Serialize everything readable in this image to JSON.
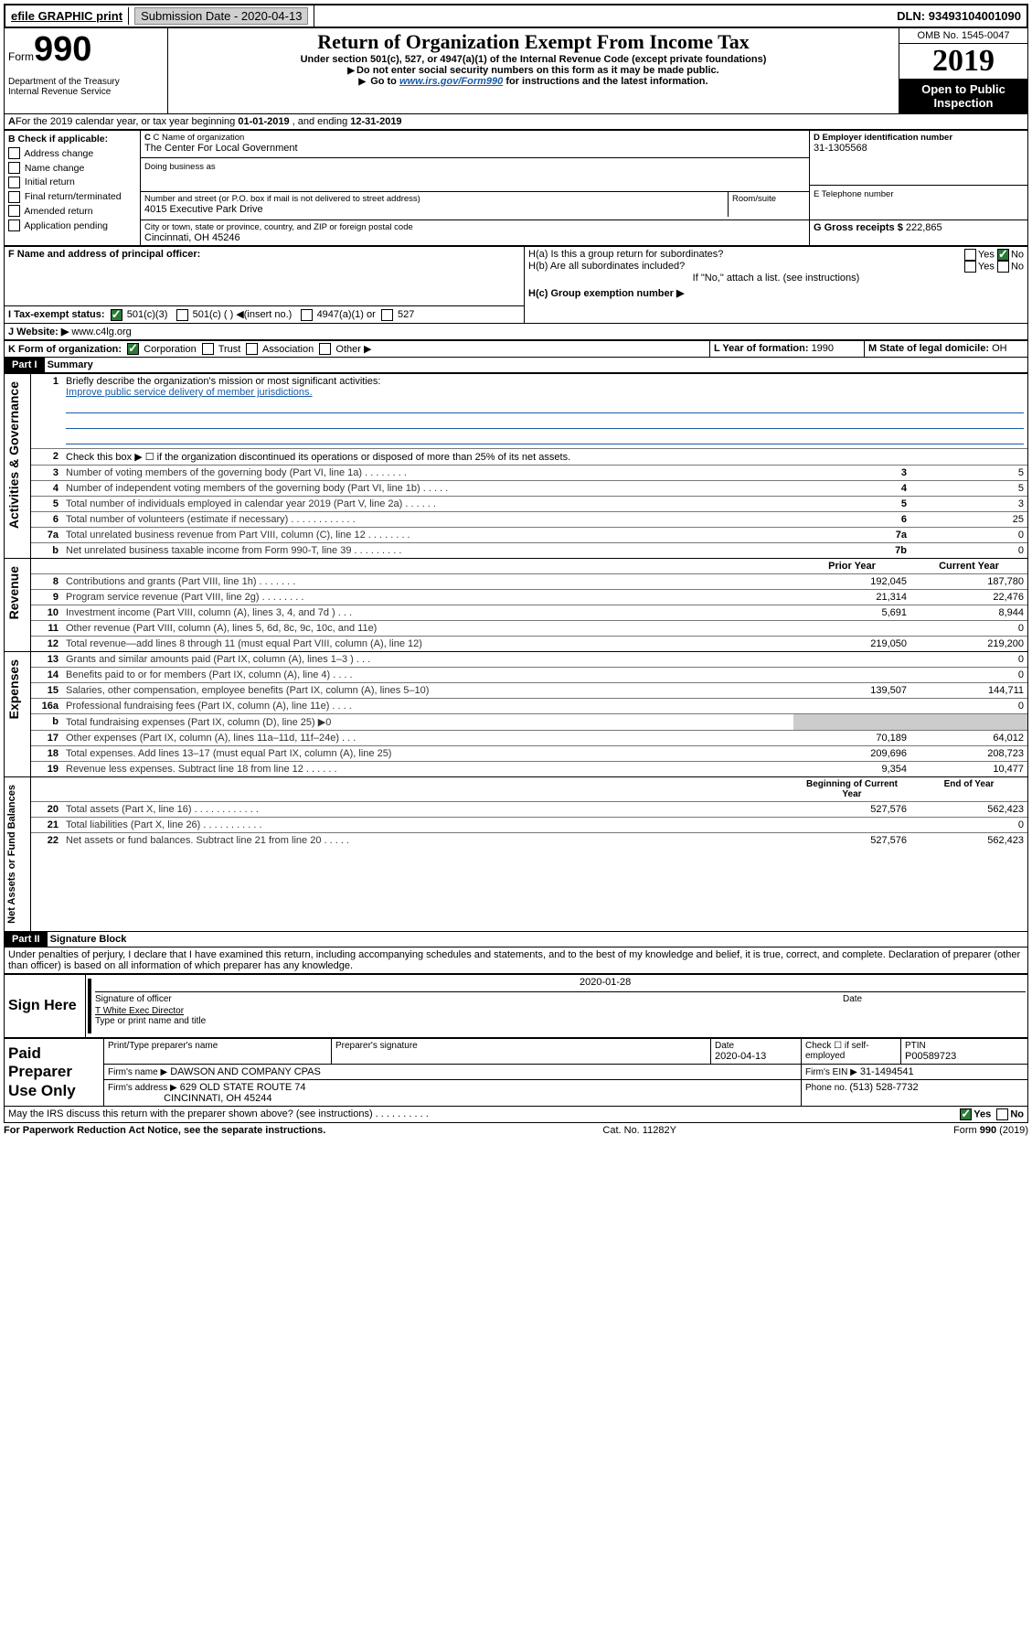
{
  "topbar": {
    "efile": "efile GRAPHIC print",
    "submission_label": "Submission Date",
    "submission_date": "2020-04-13",
    "dln_label": "DLN:",
    "dln": "93493104001090"
  },
  "header": {
    "form_label": "Form",
    "form_number": "990",
    "dept": "Department of the Treasury",
    "irs": "Internal Revenue Service",
    "title": "Return of Organization Exempt From Income Tax",
    "subtitle": "Under section 501(c), 527, or 4947(a)(1) of the Internal Revenue Code (except private foundations)",
    "warn": "Do not enter social security numbers on this form as it may be made public.",
    "goto_pre": "Go to ",
    "goto_link": "www.irs.gov/Form990",
    "goto_post": " for instructions and the latest information.",
    "omb": "OMB No. 1545-0047",
    "year": "2019",
    "open_public": "Open to Public Inspection"
  },
  "lineA": {
    "text_pre": "For the 2019 calendar year, or tax year beginning ",
    "begin": "01-01-2019",
    "mid": " , and ending ",
    "end": "12-31-2019"
  },
  "boxB": {
    "label": "B Check if applicable:",
    "items": [
      "Address change",
      "Name change",
      "Initial return",
      "Final return/terminated",
      "Amended return",
      "Application pending"
    ]
  },
  "boxC": {
    "name_label": "C Name of organization",
    "name": "The Center For Local Government",
    "dba_label": "Doing business as",
    "addr_label": "Number and street (or P.O. box if mail is not delivered to street address)",
    "room_label": "Room/suite",
    "addr": "4015 Executive Park Drive",
    "city_label": "City or town, state or province, country, and ZIP or foreign postal code",
    "city": "Cincinnati, OH  45246"
  },
  "boxD": {
    "label": "D Employer identification number",
    "ein": "31-1305568"
  },
  "boxE": {
    "label": "E Telephone number"
  },
  "boxG": {
    "label": "G Gross receipts $ ",
    "amount": "222,865"
  },
  "boxF": {
    "label": "F  Name and address of principal officer:"
  },
  "boxH": {
    "a": "H(a)  Is this a group return for subordinates?",
    "b": "H(b)  Are all subordinates included?",
    "note": "If \"No,\" attach a list. (see instructions)",
    "c": "H(c)  Group exemption number ▶",
    "yes": "Yes",
    "no": "No"
  },
  "boxI": {
    "label": "I  Tax-exempt status:",
    "o1": "501(c)(3)",
    "o2": "501(c) ( )  ◀(insert no.)",
    "o3": "4947(a)(1) or",
    "o4": "527"
  },
  "boxJ": {
    "label": "J  Website: ▶",
    "url": " www.c4lg.org"
  },
  "boxK": {
    "label": "K Form of organization:",
    "o1": "Corporation",
    "o2": "Trust",
    "o3": "Association",
    "o4": "Other ▶"
  },
  "boxL": {
    "label": "L Year of formation: ",
    "val": "1990"
  },
  "boxM": {
    "label": "M State of legal domicile: ",
    "val": "OH"
  },
  "partI": {
    "tag": "Part I",
    "title": "Summary"
  },
  "summary": {
    "q1": "Briefly describe the organization's mission or most significant activities:",
    "mission": "Improve public service delivery of member jurisdictions.",
    "q2": "Check this box ▶ ☐  if the organization discontinued its operations or disposed of more than 25% of its net assets.",
    "rows_top": [
      {
        "n": "3",
        "t": "Number of voting members of the governing body (Part VI, line 1a)   .    .    .    .    .    .    .    .",
        "rn": "3",
        "v": "5"
      },
      {
        "n": "4",
        "t": "Number of independent voting members of the governing body (Part VI, line 1b)   .    .    .    .    .",
        "rn": "4",
        "v": "5"
      },
      {
        "n": "5",
        "t": "Total number of individuals employed in calendar year 2019 (Part V, line 2a)    .    .    .    .    .    .",
        "rn": "5",
        "v": "3"
      },
      {
        "n": "6",
        "t": "Total number of volunteers (estimate if necessary)    .    .    .    .    .    .    .    .    .    .    .    .",
        "rn": "6",
        "v": "25"
      },
      {
        "n": "7a",
        "t": "Total unrelated business revenue from Part VIII, column (C), line 12   .    .    .    .    .    .    .    .",
        "rn": "7a",
        "v": "0"
      },
      {
        "n": "b",
        "t": "Net unrelated business taxable income from Form 990-T, line 39    .    .    .    .    .    .    .    .    .",
        "rn": "7b",
        "v": "0"
      }
    ],
    "col_prior": "Prior Year",
    "col_current": "Current Year",
    "rows_rev": [
      {
        "n": "8",
        "t": "Contributions and grants (Part VIII, line 1h)   .    .    .    .    .    .    .",
        "p": "192,045",
        "c": "187,780"
      },
      {
        "n": "9",
        "t": "Program service revenue (Part VIII, line 2g)  .    .    .    .    .    .    .    .",
        "p": "21,314",
        "c": "22,476"
      },
      {
        "n": "10",
        "t": "Investment income (Part VIII, column (A), lines 3, 4, and 7d )   .    .    .",
        "p": "5,691",
        "c": "8,944"
      },
      {
        "n": "11",
        "t": "Other revenue (Part VIII, column (A), lines 5, 6d, 8c, 9c, 10c, and 11e)",
        "p": "",
        "c": "0"
      },
      {
        "n": "12",
        "t": "Total revenue—add lines 8 through 11 (must equal Part VIII, column (A), line 12)",
        "p": "219,050",
        "c": "219,200"
      }
    ],
    "rows_exp": [
      {
        "n": "13",
        "t": "Grants and similar amounts paid (Part IX, column (A), lines 1–3 )  .    .    .",
        "p": "",
        "c": "0"
      },
      {
        "n": "14",
        "t": "Benefits paid to or for members (Part IX, column (A), line 4)  .    .    .    .",
        "p": "",
        "c": "0"
      },
      {
        "n": "15",
        "t": "Salaries, other compensation, employee benefits (Part IX, column (A), lines 5–10)",
        "p": "139,507",
        "c": "144,711"
      },
      {
        "n": "16a",
        "t": "Professional fundraising fees (Part IX, column (A), line 11e)  .    .    .    .",
        "p": "",
        "c": "0"
      },
      {
        "n": "b",
        "t": "Total fundraising expenses (Part IX, column (D), line 25) ▶0",
        "p": null,
        "c": null
      },
      {
        "n": "17",
        "t": "Other expenses (Part IX, column (A), lines 11a–11d, 11f–24e)   .    .    .",
        "p": "70,189",
        "c": "64,012"
      },
      {
        "n": "18",
        "t": "Total expenses. Add lines 13–17 (must equal Part IX, column (A), line 25)",
        "p": "209,696",
        "c": "208,723"
      },
      {
        "n": "19",
        "t": "Revenue less expenses. Subtract line 18 from line 12   .    .    .    .    .    .",
        "p": "9,354",
        "c": "10,477"
      }
    ],
    "col_begin": "Beginning of Current Year",
    "col_end": "End of Year",
    "rows_net": [
      {
        "n": "20",
        "t": "Total assets (Part X, line 16)  .    .    .    .    .    .    .    .    .    .    .    .",
        "p": "527,576",
        "c": "562,423"
      },
      {
        "n": "21",
        "t": "Total liabilities (Part X, line 26)   .    .    .    .    .    .    .    .    .    .    .",
        "p": "",
        "c": "0"
      },
      {
        "n": "22",
        "t": "Net assets or fund balances. Subtract line 21 from line 20   .    .    .    .    .",
        "p": "527,576",
        "c": "562,423"
      }
    ]
  },
  "vlabels": {
    "gov": "Activities & Governance",
    "rev": "Revenue",
    "exp": "Expenses",
    "net": "Net Assets or Fund Balances"
  },
  "partII": {
    "tag": "Part II",
    "title": "Signature Block"
  },
  "perjury": "Under penalties of perjury, I declare that I have examined this return, including accompanying schedules and statements, and to the best of my knowledge and belief, it is true, correct, and complete. Declaration of preparer (other than officer) is based on all information of which preparer has any knowledge.",
  "sign": {
    "here": "Sign Here",
    "sig_officer": "Signature of officer",
    "date_label": "Date",
    "date": "2020-01-28",
    "name_title": "T White  Exec Director",
    "type_name": "Type or print name and title"
  },
  "paid": {
    "label": "Paid Preparer Use Only",
    "print_name": "Print/Type preparer's name",
    "prep_sig": "Preparer's signature",
    "date_label": "Date",
    "date": "2020-04-13",
    "check_label": "Check ☐ if self-employed",
    "ptin_label": "PTIN",
    "ptin": "P00589723",
    "firm_name_label": "Firm's name    ▶",
    "firm_name": "DAWSON AND COMPANY CPAS",
    "firm_ein_label": "Firm's EIN ▶",
    "firm_ein": "31-1494541",
    "firm_addr_label": "Firm's address ▶",
    "firm_addr1": "629 OLD STATE ROUTE 74",
    "firm_addr2": "CINCINNATI, OH  45244",
    "phone_label": "Phone no. ",
    "phone": "(513) 528-7732"
  },
  "discuss": {
    "q": "May the IRS discuss this return with the preparer shown above? (see instructions)    .    .    .    .    .    .    .    .    .    .",
    "yes": "Yes",
    "no": "No"
  },
  "footer": {
    "pra": "For Paperwork Reduction Act Notice, see the separate instructions.",
    "cat": "Cat. No. 11282Y",
    "form": "Form 990 (2019)"
  }
}
